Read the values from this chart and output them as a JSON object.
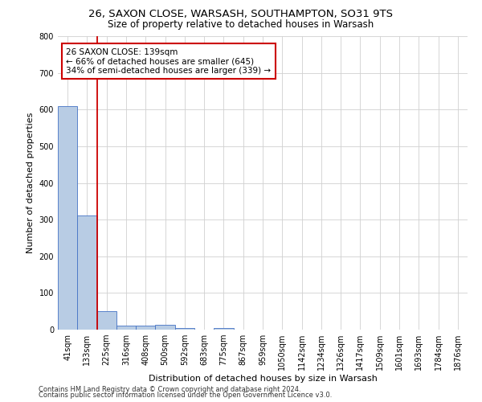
{
  "title_line1": "26, SAXON CLOSE, WARSASH, SOUTHAMPTON, SO31 9TS",
  "title_line2": "Size of property relative to detached houses in Warsash",
  "xlabel": "Distribution of detached houses by size in Warsash",
  "ylabel": "Number of detached properties",
  "footnote1": "Contains HM Land Registry data © Crown copyright and database right 2024.",
  "footnote2": "Contains public sector information licensed under the Open Government Licence v3.0.",
  "bar_labels": [
    "41sqm",
    "133sqm",
    "225sqm",
    "316sqm",
    "408sqm",
    "500sqm",
    "592sqm",
    "683sqm",
    "775sqm",
    "867sqm",
    "959sqm",
    "1050sqm",
    "1142sqm",
    "1234sqm",
    "1326sqm",
    "1417sqm",
    "1509sqm",
    "1601sqm",
    "1693sqm",
    "1784sqm",
    "1876sqm"
  ],
  "bar_values": [
    609,
    312,
    50,
    12,
    12,
    14,
    5,
    0,
    5,
    0,
    0,
    0,
    0,
    0,
    0,
    0,
    0,
    0,
    0,
    0,
    0
  ],
  "bar_color": "#b8cce4",
  "bar_edge_color": "#4472c4",
  "property_line_index": 1,
  "property_line_color": "#cc0000",
  "annotation_text": "26 SAXON CLOSE: 139sqm\n← 66% of detached houses are smaller (645)\n34% of semi-detached houses are larger (339) →",
  "annotation_box_color": "#ffffff",
  "annotation_box_edge": "#cc0000",
  "ylim": [
    0,
    800
  ],
  "yticks": [
    0,
    100,
    200,
    300,
    400,
    500,
    600,
    700,
    800
  ],
  "background_color": "#ffffff",
  "grid_color": "#d0d0d0",
  "title_fontsize": 9.5,
  "subtitle_fontsize": 8.5,
  "xlabel_fontsize": 8,
  "ylabel_fontsize": 8,
  "tick_fontsize": 7,
  "annotation_fontsize": 7.5,
  "footnote_fontsize": 6
}
